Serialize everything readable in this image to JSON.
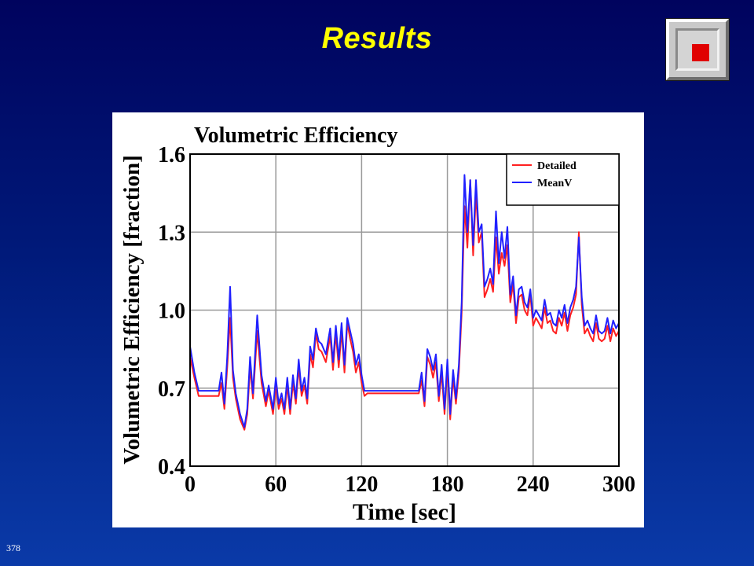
{
  "slide": {
    "title": "Results",
    "number": "378",
    "nav_icon": "stop-square-icon",
    "colors": {
      "title": "#ffff00",
      "background_top": "#00035e",
      "background_bottom": "#0a3aa8"
    }
  },
  "chart_data": {
    "type": "line",
    "title": "Volumetric Efficiency",
    "xlabel": "Time [sec]",
    "ylabel": "Volumetric Efficiency [fraction]",
    "xlim": [
      0,
      300
    ],
    "ylim": [
      0.4,
      1.6
    ],
    "xticks": [
      0,
      60,
      120,
      180,
      240,
      300
    ],
    "xtick_labels": [
      "0",
      "60",
      "120",
      "180",
      "240",
      "300"
    ],
    "yticks": [
      0.4,
      0.7,
      1.0,
      1.3,
      1.6
    ],
    "ytick_labels": [
      "0.4",
      "0.7",
      "1.0",
      "1.3",
      "1.6"
    ],
    "grid": true,
    "legend_position": "top-right",
    "series": [
      {
        "name": "Detailed",
        "color": "#ff2020",
        "x": [
          0,
          3,
          6,
          10,
          15,
          20,
          22,
          24,
          26,
          28,
          30,
          32,
          35,
          38,
          40,
          42,
          44,
          47,
          50,
          53,
          55,
          58,
          60,
          62,
          64,
          66,
          68,
          70,
          72,
          74,
          76,
          78,
          80,
          82,
          84,
          86,
          88,
          90,
          92,
          95,
          98,
          100,
          102,
          104,
          106,
          108,
          110,
          112,
          114,
          116,
          118,
          120,
          122,
          124,
          126,
          130,
          135,
          140,
          145,
          150,
          155,
          160,
          162,
          164,
          166,
          168,
          170,
          172,
          174,
          176,
          178,
          180,
          182,
          184,
          186,
          188,
          190,
          192,
          194,
          196,
          198,
          200,
          202,
          204,
          206,
          208,
          210,
          212,
          214,
          216,
          218,
          220,
          222,
          224,
          226,
          228,
          230,
          232,
          234,
          236,
          238,
          240,
          242,
          244,
          246,
          248,
          250,
          252,
          254,
          256,
          258,
          260,
          262,
          264,
          266,
          268,
          270,
          272,
          274,
          276,
          278,
          280,
          282,
          284,
          286,
          288,
          290,
          292,
          294,
          296,
          298,
          300
        ],
        "y": [
          0.82,
          0.74,
          0.67,
          0.67,
          0.67,
          0.67,
          0.72,
          0.62,
          0.78,
          0.97,
          0.74,
          0.66,
          0.58,
          0.54,
          0.6,
          0.78,
          0.66,
          0.92,
          0.72,
          0.63,
          0.69,
          0.6,
          0.71,
          0.62,
          0.66,
          0.6,
          0.71,
          0.6,
          0.72,
          0.64,
          0.78,
          0.67,
          0.71,
          0.64,
          0.83,
          0.78,
          0.91,
          0.85,
          0.84,
          0.8,
          0.9,
          0.77,
          0.91,
          0.78,
          0.92,
          0.76,
          0.95,
          0.89,
          0.84,
          0.76,
          0.8,
          0.72,
          0.67,
          0.68,
          0.68,
          0.68,
          0.68,
          0.68,
          0.68,
          0.68,
          0.68,
          0.68,
          0.73,
          0.63,
          0.82,
          0.79,
          0.74,
          0.8,
          0.65,
          0.76,
          0.6,
          0.78,
          0.58,
          0.74,
          0.64,
          0.76,
          0.99,
          1.4,
          1.24,
          1.5,
          1.21,
          1.45,
          1.26,
          1.3,
          1.05,
          1.08,
          1.12,
          1.07,
          1.28,
          1.14,
          1.22,
          1.17,
          1.25,
          1.03,
          1.1,
          0.95,
          1.05,
          1.06,
          1.0,
          0.98,
          1.06,
          0.94,
          0.97,
          0.95,
          0.93,
          1.01,
          0.95,
          0.96,
          0.92,
          0.91,
          0.97,
          0.94,
          0.99,
          0.92,
          0.98,
          1.01,
          1.06,
          1.3,
          1.02,
          0.91,
          0.93,
          0.9,
          0.88,
          0.95,
          0.89,
          0.88,
          0.89,
          0.94,
          0.88,
          0.93,
          0.9,
          0.92
        ]
      },
      {
        "name": "MeanV",
        "color": "#2020ff",
        "x": [
          0,
          3,
          6,
          10,
          15,
          20,
          22,
          24,
          26,
          28,
          30,
          32,
          35,
          38,
          40,
          42,
          44,
          47,
          50,
          53,
          55,
          58,
          60,
          62,
          64,
          66,
          68,
          70,
          72,
          74,
          76,
          78,
          80,
          82,
          84,
          86,
          88,
          90,
          92,
          95,
          98,
          100,
          102,
          104,
          106,
          108,
          110,
          112,
          114,
          116,
          118,
          120,
          122,
          124,
          126,
          130,
          135,
          140,
          145,
          150,
          155,
          160,
          162,
          164,
          166,
          168,
          170,
          172,
          174,
          176,
          178,
          180,
          182,
          184,
          186,
          188,
          190,
          192,
          194,
          196,
          198,
          200,
          202,
          204,
          206,
          208,
          210,
          212,
          214,
          216,
          218,
          220,
          222,
          224,
          226,
          228,
          230,
          232,
          234,
          236,
          238,
          240,
          242,
          244,
          246,
          248,
          250,
          252,
          254,
          256,
          258,
          260,
          262,
          264,
          266,
          268,
          270,
          272,
          274,
          276,
          278,
          280,
          282,
          284,
          286,
          288,
          290,
          292,
          294,
          296,
          298,
          300
        ],
        "y": [
          0.86,
          0.76,
          0.69,
          0.69,
          0.69,
          0.69,
          0.76,
          0.64,
          0.82,
          1.09,
          0.77,
          0.68,
          0.6,
          0.55,
          0.62,
          0.82,
          0.68,
          0.98,
          0.75,
          0.65,
          0.71,
          0.62,
          0.74,
          0.64,
          0.68,
          0.62,
          0.74,
          0.62,
          0.75,
          0.66,
          0.81,
          0.69,
          0.74,
          0.66,
          0.86,
          0.81,
          0.93,
          0.88,
          0.87,
          0.83,
          0.93,
          0.8,
          0.94,
          0.81,
          0.95,
          0.79,
          0.97,
          0.92,
          0.87,
          0.79,
          0.83,
          0.75,
          0.69,
          0.69,
          0.69,
          0.69,
          0.69,
          0.69,
          0.69,
          0.69,
          0.69,
          0.69,
          0.76,
          0.65,
          0.85,
          0.82,
          0.77,
          0.83,
          0.67,
          0.79,
          0.62,
          0.81,
          0.6,
          0.77,
          0.66,
          0.79,
          1.03,
          1.52,
          1.3,
          1.5,
          1.25,
          1.5,
          1.3,
          1.33,
          1.09,
          1.12,
          1.16,
          1.1,
          1.38,
          1.18,
          1.3,
          1.2,
          1.32,
          1.06,
          1.13,
          0.98,
          1.08,
          1.09,
          1.03,
          1.01,
          1.08,
          0.97,
          1.0,
          0.98,
          0.96,
          1.04,
          0.98,
          0.99,
          0.95,
          0.94,
          1.0,
          0.97,
          1.02,
          0.95,
          1.01,
          1.04,
          1.09,
          1.28,
          1.05,
          0.94,
          0.96,
          0.93,
          0.91,
          0.98,
          0.92,
          0.91,
          0.92,
          0.97,
          0.91,
          0.96,
          0.93,
          0.95
        ]
      }
    ]
  }
}
